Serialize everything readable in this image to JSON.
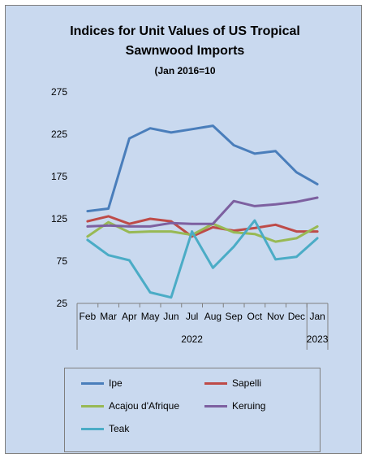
{
  "chart_data": {
    "type": "line",
    "title_lines": [
      "Indices for Unit Values of US Tropical",
      "Sawnwood Imports",
      "(Jan 2016=10"
    ],
    "categories": [
      "Feb",
      "Mar",
      "Apr",
      "May",
      "Jun",
      "Jul",
      "Aug",
      "Sep",
      "Oct",
      "Nov",
      "Dec",
      "Jan"
    ],
    "year_labels": [
      "2022",
      "2023"
    ],
    "ylim": [
      25,
      275
    ],
    "yticks": [
      275,
      225,
      175,
      125,
      75,
      25
    ],
    "grid": false,
    "legend_position": "bottom",
    "series": [
      {
        "name": "Ipe",
        "color": "#4a7ebb",
        "values": [
          134,
          137,
          220,
          232,
          227,
          231,
          235,
          212,
          202,
          205,
          180,
          166
        ]
      },
      {
        "name": "Sapelli",
        "color": "#be4b48",
        "values": [
          122,
          128,
          119,
          125,
          122,
          104,
          115,
          111,
          114,
          118,
          110,
          110
        ]
      },
      {
        "name": "Acajou d'Afrique",
        "color": "#98b954",
        "values": [
          104,
          121,
          109,
          110,
          110,
          106,
          119,
          109,
          107,
          98,
          102,
          116
        ]
      },
      {
        "name": "Keruing",
        "color": "#7d60a0",
        "values": [
          116,
          117,
          116,
          116,
          120,
          119,
          119,
          146,
          140,
          142,
          145,
          150
        ]
      },
      {
        "name": "Teak",
        "color": "#4bacc6",
        "values": [
          100,
          82,
          76,
          38,
          32,
          110,
          67,
          92,
          123,
          77,
          80,
          102
        ]
      }
    ]
  }
}
